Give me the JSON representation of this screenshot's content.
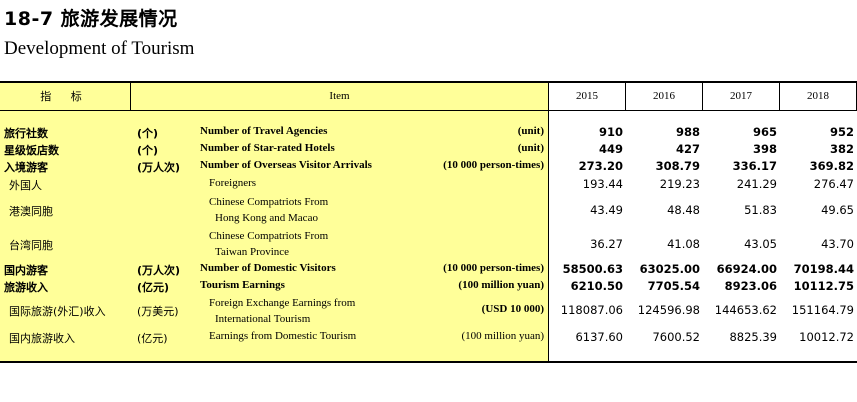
{
  "title": {
    "cn": "18-7  旅游发展情况",
    "en": "Development of Tourism"
  },
  "header": {
    "indicator": "指  标",
    "item": "Item",
    "years": [
      "2015",
      "2016",
      "2017",
      "2018"
    ]
  },
  "rows": [
    {
      "cn": "旅行社数",
      "cn_unit": "(个)",
      "en": "Number of Travel Agencies",
      "en_unit": "(unit)",
      "values": [
        "910",
        "988",
        "965",
        "952"
      ]
    },
    {
      "cn": "星级饭店数",
      "cn_unit": "(个)",
      "en": "Number of Star-rated Hotels",
      "en_unit": "(unit)",
      "values": [
        "449",
        "427",
        "398",
        "382"
      ]
    },
    {
      "cn": "入境游客",
      "cn_unit": "(万人次)",
      "en": "Number of Overseas Visitor Arrivals",
      "en_unit": "(10 000 person-times)",
      "values": [
        "273.20",
        "308.79",
        "336.17",
        "369.82"
      ]
    },
    {
      "cn": "外国人",
      "cn_unit": "",
      "en": "Foreigners",
      "en_unit": "",
      "values": [
        "193.44",
        "219.23",
        "241.29",
        "276.47"
      ]
    },
    {
      "cn": "港澳同胞",
      "cn_unit": "",
      "en_line1": "Chinese Compatriots From",
      "en_line2": "Hong Kong and Macao",
      "en_unit": "",
      "values": [
        "43.49",
        "48.48",
        "51.83",
        "49.65"
      ]
    },
    {
      "cn": "台湾同胞",
      "cn_unit": "",
      "en_line1": "Chinese Compatriots From",
      "en_line2": "Taiwan Province",
      "en_unit": "",
      "values": [
        "36.27",
        "41.08",
        "43.05",
        "43.70"
      ]
    },
    {
      "cn": "国内游客",
      "cn_unit": "(万人次)",
      "en": "Number of Domestic Visitors",
      "en_unit": "(10 000 person-times)",
      "values": [
        "58500.63",
        "63025.00",
        "66924.00",
        "70198.44"
      ]
    },
    {
      "cn": "旅游收入",
      "cn_unit": "(亿元)",
      "en": "Tourism Earnings",
      "en_unit": "(100 million yuan)",
      "values": [
        "6210.50",
        "7705.54",
        "8923.06",
        "10112.75"
      ]
    },
    {
      "cn": "国际旅游(外汇)收入",
      "cn_unit": "(万美元)",
      "en_line1": "Foreign Exchange Earnings from",
      "en_line2": "International Tourism",
      "en_unit": "(USD 10 000)",
      "values": [
        "118087.06",
        "124596.98",
        "144653.62",
        "151164.79"
      ]
    },
    {
      "cn": "国内旅游收入",
      "cn_unit": "(亿元)",
      "en": "Earnings from Domestic Tourism",
      "en_unit": "(100 million yuan)",
      "values": [
        "6137.60",
        "7600.52",
        "8825.39",
        "10012.72"
      ]
    }
  ]
}
